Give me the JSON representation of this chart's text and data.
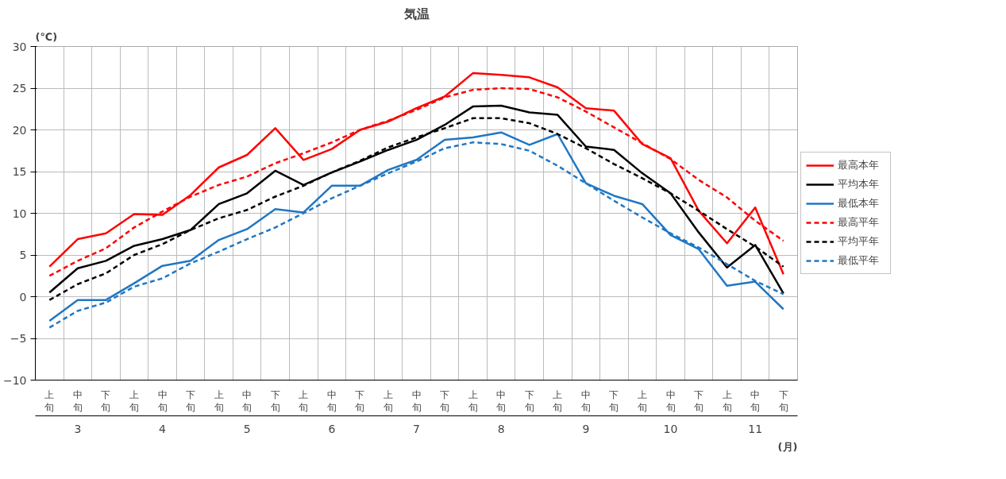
{
  "chart_data": {
    "type": "line",
    "title": "気温",
    "xlabel": "(月)",
    "ylabel": "(℃)",
    "categories": [
      "上旬",
      "中旬",
      "下旬",
      "上旬",
      "中旬",
      "下旬",
      "上旬",
      "中旬",
      "下旬",
      "上旬",
      "中旬",
      "下旬",
      "上旬",
      "中旬",
      "下旬",
      "上旬",
      "中旬",
      "下旬",
      "上旬",
      "中旬",
      "下旬",
      "上旬",
      "中旬",
      "下旬",
      "上旬",
      "中旬",
      "下旬"
    ],
    "annotations": [
      "3",
      "4",
      "5",
      "6",
      "7",
      "8",
      "9",
      "10",
      "11"
    ],
    "ylim": [
      -10,
      30
    ],
    "yticks": [
      -10,
      -5,
      0,
      5,
      10,
      15,
      20,
      25,
      30
    ],
    "grid": true,
    "legend": "right",
    "marker": "none",
    "series": [
      {
        "name": "最高本年",
        "color": "#ff0000",
        "line_style": "solid",
        "values": [
          3.6,
          6.9,
          7.6,
          9.9,
          9.8,
          12.2,
          15.5,
          17.0,
          20.2,
          16.4,
          17.7,
          20.0,
          21.0,
          22.6,
          24.0,
          26.8,
          26.6,
          26.3,
          25.1,
          22.6,
          22.3,
          18.3,
          16.6,
          10.3,
          6.4,
          10.7,
          2.7
        ]
      },
      {
        "name": "平均本年",
        "color": "#000000",
        "line_style": "solid",
        "values": [
          0.5,
          3.4,
          4.3,
          6.1,
          6.9,
          8.0,
          11.1,
          12.4,
          15.1,
          13.4,
          14.9,
          16.2,
          17.6,
          18.8,
          20.6,
          22.8,
          22.9,
          22.1,
          21.8,
          18.0,
          17.6,
          14.8,
          12.4,
          7.7,
          3.5,
          6.2,
          0.4
        ]
      },
      {
        "name": "最低本年",
        "color": "#1f77c4",
        "line_style": "solid",
        "values": [
          -2.9,
          -0.4,
          -0.4,
          1.6,
          3.7,
          4.3,
          6.8,
          8.1,
          10.5,
          10.1,
          13.3,
          13.3,
          15.2,
          16.4,
          18.8,
          19.1,
          19.7,
          18.2,
          19.5,
          13.6,
          12.1,
          11.1,
          7.4,
          5.7,
          1.3,
          1.8,
          -1.5
        ]
      },
      {
        "name": "最高平年",
        "color": "#ff0000",
        "line_style": "dashed",
        "values": [
          2.5,
          4.3,
          5.8,
          8.3,
          10.2,
          12.0,
          13.4,
          14.4,
          16.0,
          17.2,
          18.5,
          20.0,
          21.1,
          22.4,
          23.9,
          24.8,
          25.0,
          24.9,
          23.9,
          22.2,
          20.3,
          18.4,
          16.5,
          14.0,
          11.9,
          9.1,
          6.7
        ]
      },
      {
        "name": "平均平年",
        "color": "#000000",
        "line_style": "dashed",
        "values": [
          -0.4,
          1.5,
          2.8,
          5.0,
          6.3,
          8.0,
          9.4,
          10.4,
          12.0,
          13.3,
          14.9,
          16.3,
          17.9,
          19.1,
          20.2,
          21.4,
          21.4,
          20.8,
          19.5,
          17.8,
          15.9,
          14.2,
          12.4,
          10.3,
          8.1,
          6.0,
          3.6
        ]
      },
      {
        "name": "最低平年",
        "color": "#1f77c4",
        "line_style": "dashed",
        "values": [
          -3.7,
          -1.7,
          -0.7,
          1.2,
          2.2,
          4.0,
          5.4,
          6.9,
          8.3,
          10.0,
          11.8,
          13.3,
          14.8,
          16.2,
          17.8,
          18.5,
          18.3,
          17.5,
          15.7,
          13.6,
          11.5,
          9.5,
          7.6,
          5.9,
          3.9,
          1.9,
          0.3
        ]
      }
    ]
  }
}
